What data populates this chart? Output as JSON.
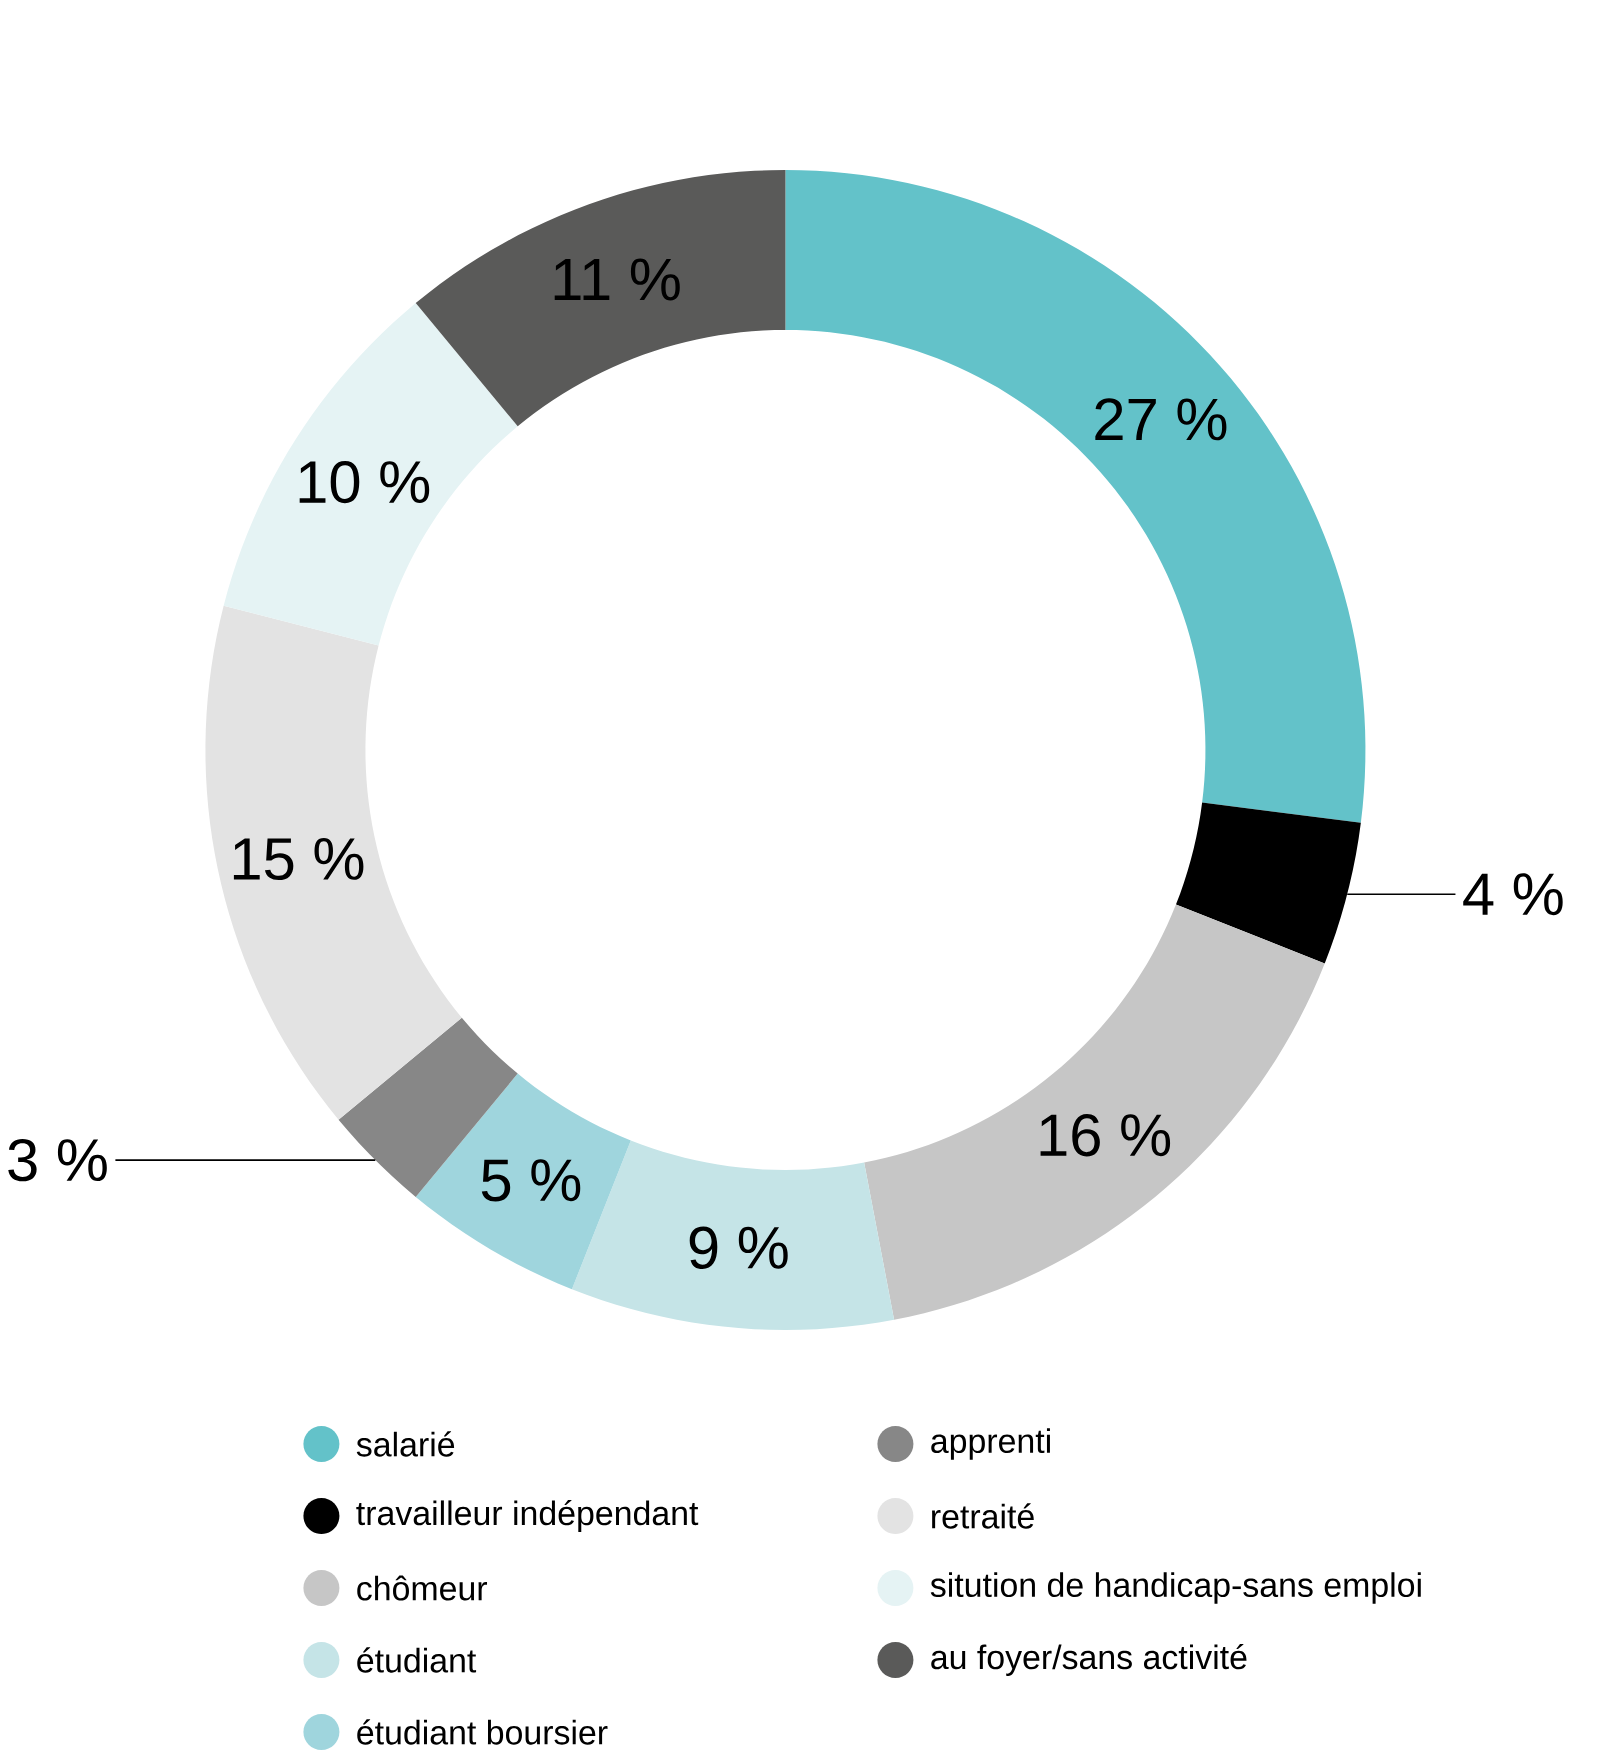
{
  "chart_data": {
    "type": "donut",
    "categories": [
      "salarié",
      "travailleur indépendant",
      "chômeur",
      "étudiant",
      "étudiant boursier",
      "apprenti",
      "retraité",
      "sitution de handicap-sans emploi",
      "au foyer/sans activité"
    ],
    "values": [
      27,
      4,
      16,
      9,
      5,
      3,
      15,
      10,
      11
    ],
    "colors": [
      "#63c2c9",
      "#000000",
      "#c6c6c6",
      "#c5e4e7",
      "#9fd5dd",
      "#878787",
      "#e3e3e3",
      "#e5f3f4",
      "#5a5a59"
    ],
    "value_labels": [
      "27 %",
      "4 %",
      "16 %",
      "9 %",
      "5 %",
      "3 %",
      "15 %",
      "10 %",
      "11 %"
    ],
    "legend": "bottom"
  }
}
